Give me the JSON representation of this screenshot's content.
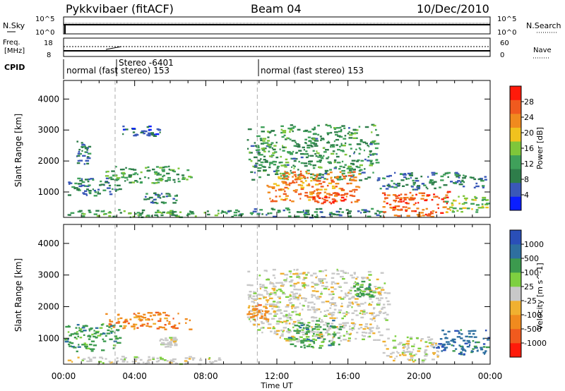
{
  "header": {
    "station": "Pykkvibaer (fitACF)",
    "beam": "Beam 04",
    "date": "10/Dec/2010"
  },
  "noise_panel": {
    "left_label": "N.Sky",
    "right_label": "N.Search",
    "left_ticks": [
      "10^5",
      "10^0"
    ],
    "right_ticks": [
      "10^5",
      "10^0"
    ]
  },
  "freq_panel": {
    "left_label_line1": "Freq.",
    "left_label_line2": "[MHz]",
    "left_ticks": [
      "18",
      "8"
    ],
    "right_label": "Nave",
    "right_ticks": [
      "60",
      "0"
    ]
  },
  "cpid": {
    "label": "CPID",
    "segments": [
      {
        "start_hour": 0,
        "text": "normal (fast stereo) 153"
      },
      {
        "start_hour": 10.9,
        "text": "normal (fast stereo) 153"
      }
    ],
    "stereo_text": "Stereo -6401",
    "stereo_hour": 2.9
  },
  "colors": {
    "power_scale": [
      "#0a1eff",
      "#3a58b8",
      "#2e7d4a",
      "#3fa05a",
      "#7fc63a",
      "#f0c21e",
      "#f08a1e",
      "#f05a1e",
      "#ff1a0a"
    ],
    "velocity_scale": [
      "#ff1a0a",
      "#f05a1e",
      "#f08a1e",
      "#f0b030",
      "#c8c8c8",
      "#7ed040",
      "#3c9a4e",
      "#2e6fa0",
      "#2a4fb8"
    ]
  },
  "chart_data": [
    {
      "type": "heatmap",
      "name": "power",
      "xlabel": "",
      "ylabel": "Slant Range [km]",
      "xlim": [
        0,
        24
      ],
      "ylim": [
        180,
        4600
      ],
      "yticks": [
        1000,
        2000,
        3000,
        4000
      ],
      "colorbar_label": "Power [dB]",
      "colorbar_ticks": [
        "28",
        "24",
        "20",
        "16",
        "12",
        "8",
        "4"
      ],
      "colorbar_range": [
        0,
        32
      ],
      "vertical_markers_hours": [
        2.9,
        10.9
      ],
      "echo_regions": [
        {
          "t0": 0.0,
          "t1": 8.9,
          "r0": 200,
          "r1": 450,
          "value": 12
        },
        {
          "t0": 0.2,
          "t1": 3.2,
          "r0": 900,
          "r1": 1500,
          "value": 8
        },
        {
          "t0": 2.3,
          "t1": 7.2,
          "r0": 1300,
          "r1": 1850,
          "value": 12
        },
        {
          "t0": 4.4,
          "t1": 6.4,
          "r0": 650,
          "r1": 1000,
          "value": 9
        },
        {
          "t0": 0.7,
          "t1": 1.4,
          "r0": 1900,
          "r1": 2700,
          "value": 8
        },
        {
          "t0": 3.3,
          "t1": 5.4,
          "r0": 2800,
          "r1": 3150,
          "value": 6
        },
        {
          "t0": 10.3,
          "t1": 17.6,
          "r0": 1400,
          "r1": 3200,
          "value": 11
        },
        {
          "t0": 11.4,
          "t1": 16.6,
          "r0": 700,
          "r1": 1700,
          "value": 24
        },
        {
          "t0": 13.8,
          "t1": 16.2,
          "r0": 650,
          "r1": 1000,
          "value": 28
        },
        {
          "t0": 8.6,
          "t1": 18.2,
          "r0": 200,
          "r1": 500,
          "value": 10
        },
        {
          "t0": 17.9,
          "t1": 21.6,
          "r0": 200,
          "r1": 1050,
          "value": 26
        },
        {
          "t0": 17.6,
          "t1": 23.9,
          "r0": 1100,
          "r1": 1650,
          "value": 8
        },
        {
          "t0": 21.4,
          "t1": 23.9,
          "r0": 350,
          "r1": 900,
          "value": 16
        }
      ]
    },
    {
      "type": "heatmap",
      "name": "velocity",
      "xlabel": "Time UT",
      "ylabel": "Slant Range [km]",
      "xlim": [
        0,
        24
      ],
      "ylim": [
        180,
        4600
      ],
      "xticks": [
        "00:00",
        "04:00",
        "08:00",
        "12:00",
        "16:00",
        "20:00",
        "00:00"
      ],
      "yticks": [
        1000,
        2000,
        3000,
        4000
      ],
      "colorbar_label": "Velocity [m s^-1]",
      "colorbar_ticks": [
        "1000",
        "500",
        "100",
        "25",
        "-25",
        "-100",
        "-500",
        "-1000"
      ],
      "vertical_markers_hours": [
        2.9,
        10.9
      ],
      "echo_regions": [
        {
          "t0": 0.0,
          "t1": 3.2,
          "r0": 600,
          "r1": 1500,
          "value": 150
        },
        {
          "t0": 2.3,
          "t1": 7.2,
          "r0": 1300,
          "r1": 1850,
          "value": -300
        },
        {
          "t0": 0.2,
          "t1": 8.9,
          "r0": 200,
          "r1": 450,
          "value": 0
        },
        {
          "t0": 5.3,
          "t1": 6.5,
          "r0": 750,
          "r1": 1050,
          "value": 0
        },
        {
          "t0": 10.3,
          "t1": 18.2,
          "r0": 900,
          "r1": 3200,
          "value": 0
        },
        {
          "t0": 12.6,
          "t1": 15.6,
          "r0": 700,
          "r1": 1600,
          "value": 300
        },
        {
          "t0": 16.3,
          "t1": 17.3,
          "r0": 2300,
          "r1": 2900,
          "value": 400
        },
        {
          "t0": 17.9,
          "t1": 21.2,
          "r0": 250,
          "r1": 1100,
          "value": 0
        },
        {
          "t0": 20.8,
          "t1": 23.9,
          "r0": 500,
          "r1": 1300,
          "value": 600
        },
        {
          "t0": 10.3,
          "t1": 11.4,
          "r0": 1600,
          "r1": 2100,
          "value": -200
        }
      ]
    }
  ]
}
